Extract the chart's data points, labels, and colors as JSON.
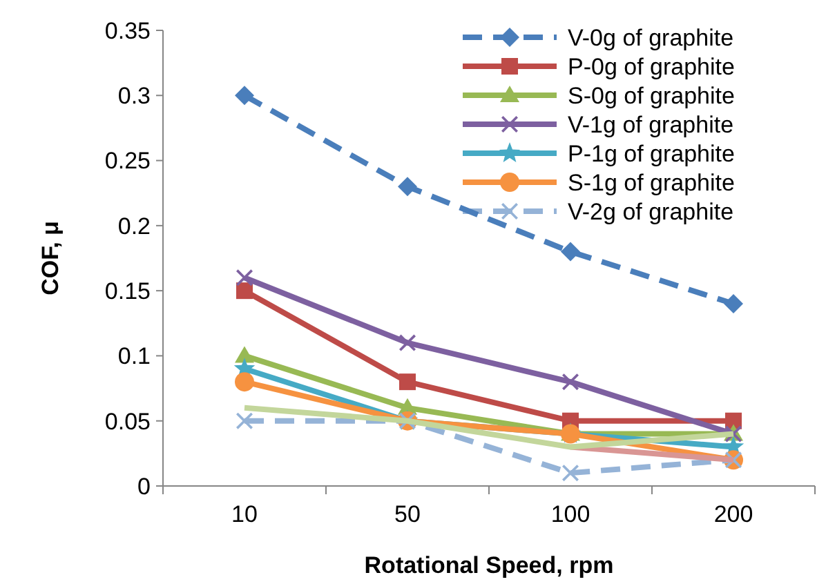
{
  "chart_data": {
    "type": "line",
    "xlabel": "Rotational Speed, rpm",
    "ylabel": "COF, μ",
    "categories": [
      "10",
      "50",
      "100",
      "200"
    ],
    "ylim": [
      0,
      0.35
    ],
    "yticks": [
      {
        "value": 0,
        "label": "0"
      },
      0.05,
      {
        "value": 0.1,
        "label": "0.1"
      },
      0.15,
      {
        "value": 0.2,
        "label": "0.2"
      },
      0.25,
      {
        "value": 0.3,
        "label": "0.3"
      },
      0.35
    ],
    "grid": false,
    "legend": "top right",
    "series": [
      {
        "name": "V-0g of graphite",
        "color": "#4a7ebb",
        "values": [
          0.3,
          0.23,
          0.18,
          0.14
        ],
        "marker": "diamond",
        "line_style": "dashed"
      },
      {
        "name": "P-0g of graphite",
        "color": "#be4b48",
        "values": [
          0.15,
          0.08,
          0.05,
          0.05
        ],
        "marker": "square",
        "line_style": "solid"
      },
      {
        "name": "S-0g of graphite",
        "color": "#98b954",
        "values": [
          0.1,
          0.06,
          0.04,
          0.04
        ],
        "marker": "triangle",
        "line_style": "solid"
      },
      {
        "name": "V-1g of graphite",
        "color": "#7d60a0",
        "values": [
          0.16,
          0.11,
          0.08,
          0.04
        ],
        "marker": "cross",
        "line_style": "solid"
      },
      {
        "name": "P-1g of graphite",
        "color": "#46aac5",
        "values": [
          0.09,
          0.05,
          0.04,
          0.03
        ],
        "marker": "star",
        "line_style": "solid"
      },
      {
        "name": "S-1g of graphite",
        "color": "#f69240",
        "values": [
          0.08,
          0.05,
          0.04,
          0.02
        ],
        "marker": "circle",
        "line_style": "solid"
      },
      {
        "name": "V-2g of graphite",
        "color": "#95b3d7",
        "values": [
          0.05,
          0.05,
          0.01,
          0.02
        ],
        "marker": "cross",
        "line_style": "dashed"
      },
      {
        "color": "#d99694",
        "values": [
          null,
          null,
          0.03,
          0.02
        ],
        "marker": "none",
        "line_style": "solid"
      },
      {
        "color": "#c3d69b",
        "values": [
          0.06,
          0.05,
          0.03,
          0.04
        ],
        "marker": "none",
        "line_style": "solid"
      }
    ]
  }
}
